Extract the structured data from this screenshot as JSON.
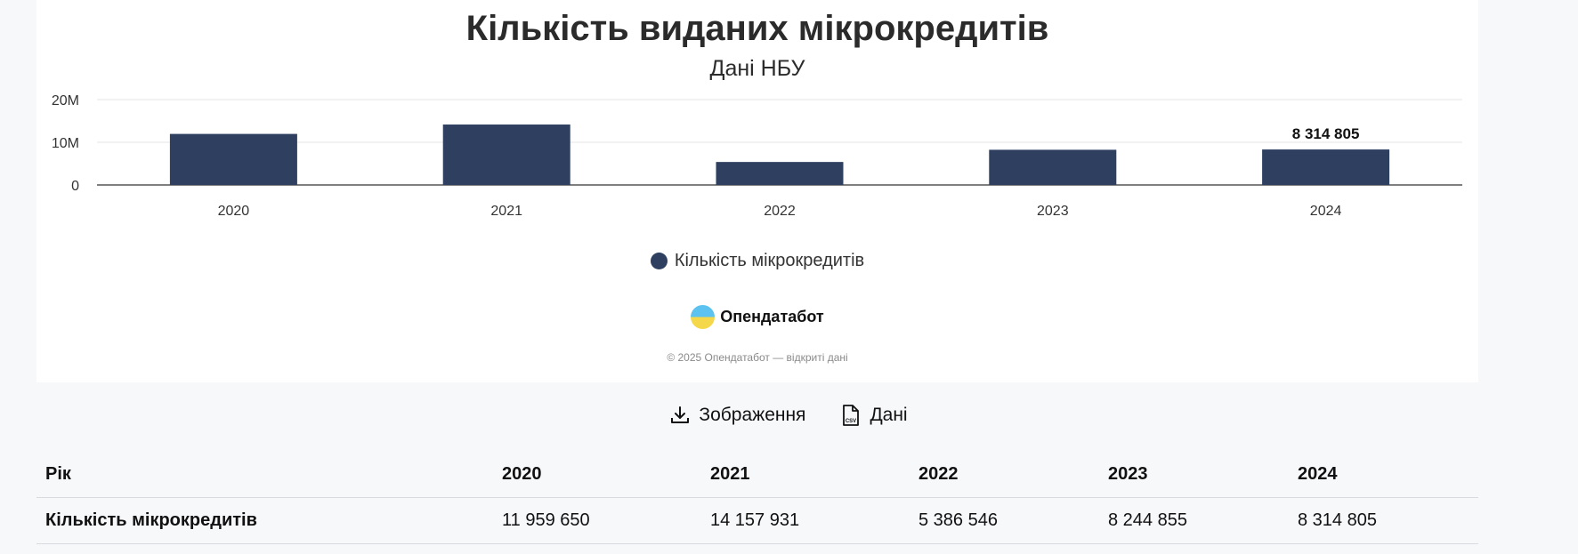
{
  "chart_data": {
    "type": "bar",
    "title": "Кількість виданих мікрокредитів",
    "subtitle": "Дані НБУ",
    "categories": [
      "2020",
      "2021",
      "2022",
      "2023",
      "2024"
    ],
    "series": [
      {
        "name": "Кількість мікрокредитів",
        "values": [
          11959650,
          14157931,
          5386546,
          8244855,
          8314805
        ]
      }
    ],
    "ylim": [
      0,
      20000000
    ],
    "yticks": [
      0,
      10000000,
      20000000
    ],
    "ytick_labels": [
      "0",
      "10M",
      "20M"
    ],
    "annotations": [
      {
        "category": "2024",
        "text": "8 314 805"
      }
    ],
    "grid": true,
    "legend": "bottom-center",
    "bar_color": "#2e3f60"
  },
  "brand": {
    "name": "Опендатабот",
    "copyright": "© 2025 Опендатабот — відкриті дані"
  },
  "actions": {
    "image_label": "Зображення",
    "data_label": "Дані"
  },
  "table": {
    "header": [
      "Рік",
      "2020",
      "2021",
      "2022",
      "2023",
      "2024"
    ],
    "rows": [
      [
        "Кількість мікрокредитів",
        "11 959 650",
        "14 157 931",
        "5 386 546",
        "8 244 855",
        "8 314 805"
      ]
    ]
  }
}
